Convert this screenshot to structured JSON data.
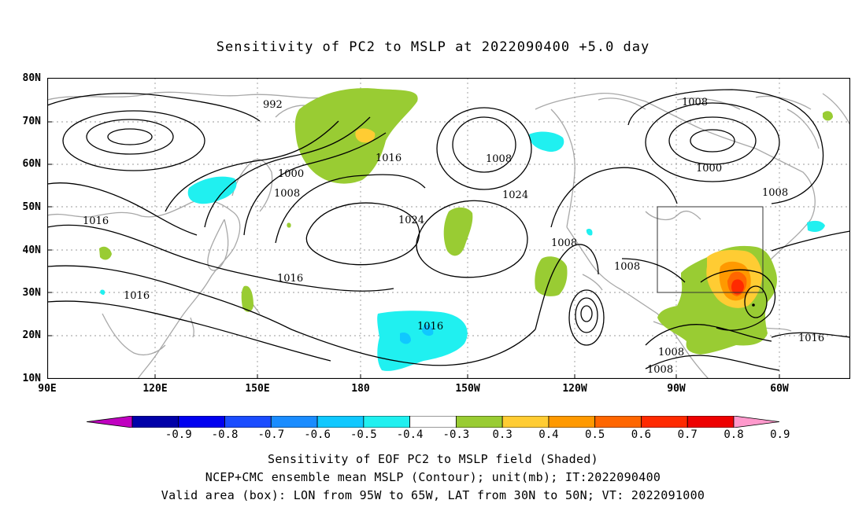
{
  "title": "Sensitivity of PC2 to MSLP at 2022090400 +5.0 day",
  "lat_labels": [
    "80N",
    "70N",
    "60N",
    "50N",
    "40N",
    "30N",
    "20N",
    "10N"
  ],
  "lon_labels": [
    "90E",
    "120E",
    "150E",
    "180",
    "150W",
    "120W",
    "90W",
    "60W"
  ],
  "contour_labels": [
    "992",
    "1000",
    "1008",
    "1016",
    "1016",
    "1016",
    "1016",
    "1024",
    "1024",
    "1016",
    "1008",
    "1008",
    "1008",
    "1008",
    "1000",
    "1008",
    "1008",
    "1008",
    "1016"
  ],
  "colorbar": {
    "labels": [
      "-0.9",
      "-0.8",
      "-0.7",
      "-0.6",
      "-0.5",
      "-0.4",
      "-0.3",
      "0.3",
      "0.4",
      "0.5",
      "0.6",
      "0.7",
      "0.8",
      "0.9"
    ],
    "colors": [
      "#c000c0",
      "#0000a8",
      "#0000f0",
      "#1a4cff",
      "#1a8cff",
      "#10c8ff",
      "#20f0f0",
      "#ffffff",
      "#99cc33",
      "#ffcc33",
      "#ff9900",
      "#ff6600",
      "#ff2a00",
      "#ee0000",
      "#ff99cc"
    ]
  },
  "footer": {
    "line1": "Sensitivity of EOF PC2 to MSLP field (Shaded)",
    "line2": "NCEP+CMC ensemble mean MSLP (Contour); unit(mb); IT:2022090400",
    "line3": "Valid area (box): LON from 95W to 65W, LAT from 30N to 50N; VT: 2022091000"
  }
}
